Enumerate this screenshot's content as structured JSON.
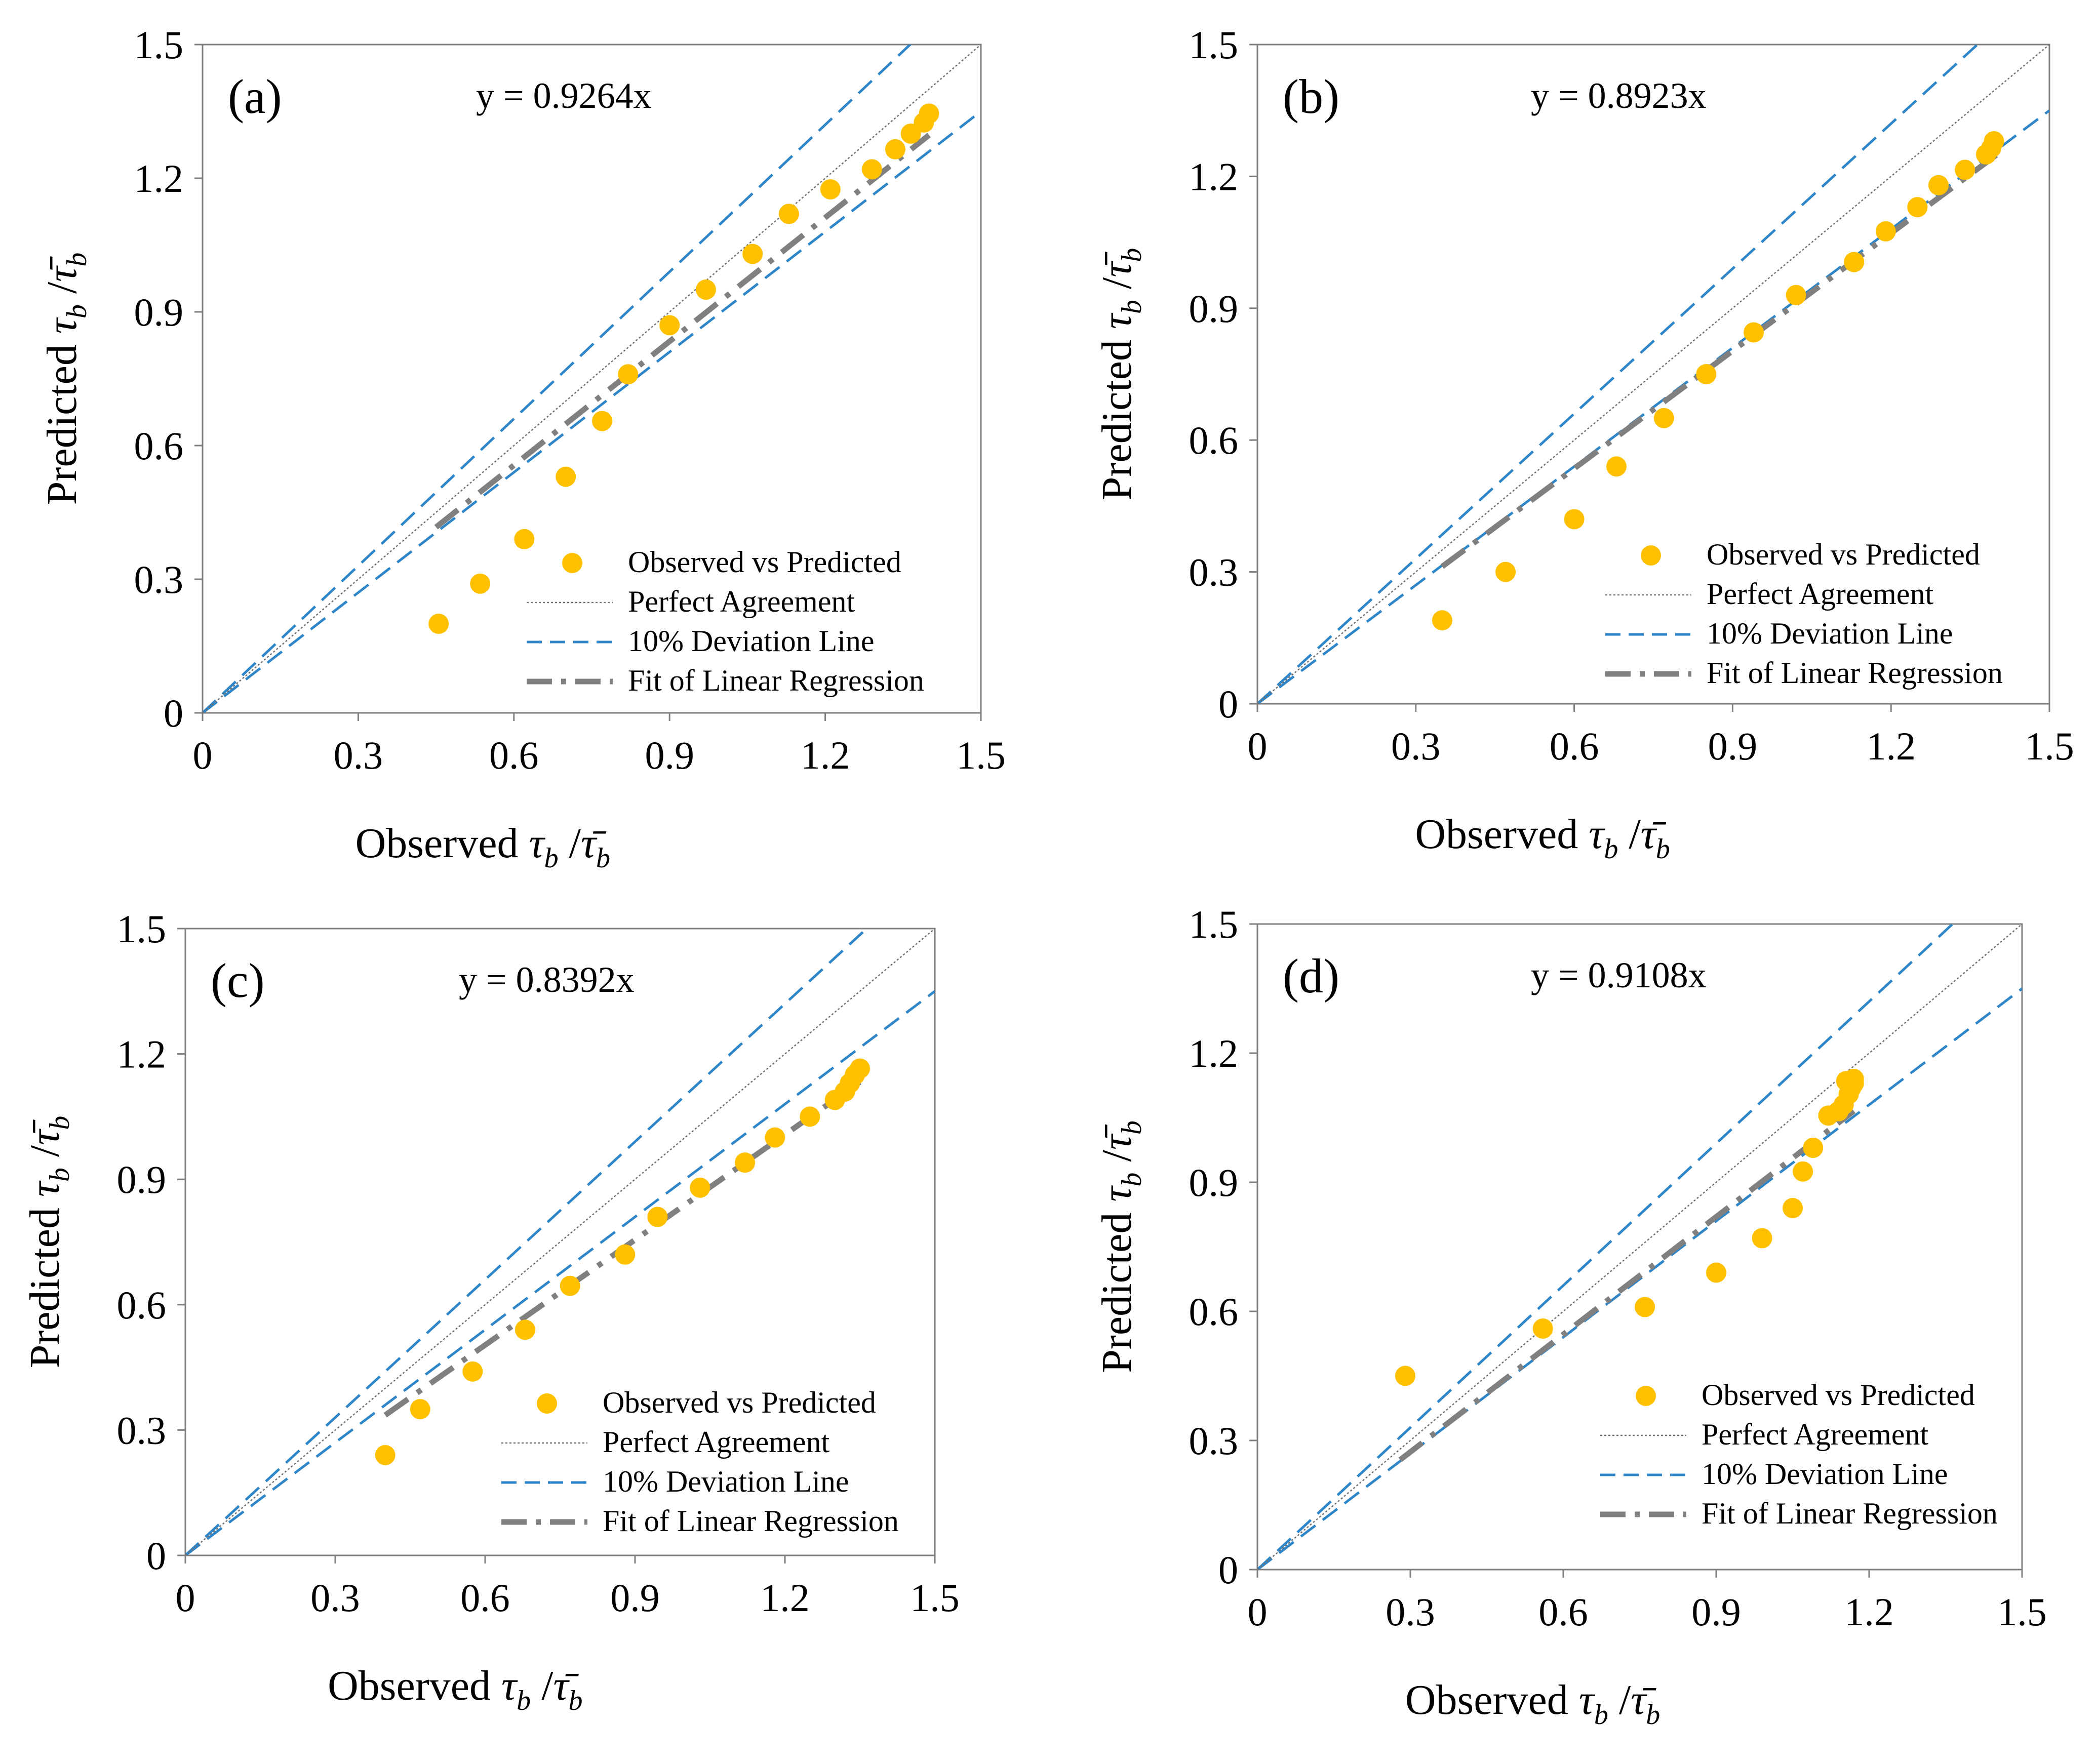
{
  "colors": {
    "points": "#FFC000",
    "perfect": "#707070",
    "deviation": "#2E86C8",
    "regression": "#808080",
    "frame": "#7F7F7F"
  },
  "legend": {
    "observed": "Observed vs Predicted",
    "perfect": "Perfect Agreement",
    "deviation": "10% Deviation Line",
    "regression": "Fit of Linear Regression"
  },
  "axes": {
    "x_word": "Observed",
    "y_word": "Predicted",
    "tau": "τ",
    "tau_bar": "τ̄",
    "subscript": "b",
    "slash": "/"
  },
  "ticks": {
    "x": [
      "0",
      "0.3",
      "0.6",
      "0.9",
      "1.2",
      "1.5"
    ],
    "y": [
      "0",
      "0.3",
      "0.6",
      "0.9",
      "1.2",
      "1.5"
    ]
  },
  "chart_data": [
    {
      "type": "scatter",
      "panel": "(a)",
      "equation": "y = 0.9264x",
      "slope": 0.9264,
      "xlim": [
        0,
        1.5
      ],
      "ylim": [
        0,
        1.5
      ],
      "fit_x_range": [
        0.45,
        1.4
      ],
      "points": [
        [
          0.455,
          0.2
        ],
        [
          0.535,
          0.29
        ],
        [
          0.62,
          0.39
        ],
        [
          0.7,
          0.53
        ],
        [
          0.77,
          0.655
        ],
        [
          0.82,
          0.76
        ],
        [
          0.9,
          0.87
        ],
        [
          0.97,
          0.95
        ],
        [
          1.06,
          1.03
        ],
        [
          1.13,
          1.12
        ],
        [
          1.21,
          1.175
        ],
        [
          1.29,
          1.22
        ],
        [
          1.335,
          1.265
        ],
        [
          1.365,
          1.3
        ],
        [
          1.39,
          1.325
        ],
        [
          1.4,
          1.345
        ]
      ]
    },
    {
      "type": "scatter",
      "panel": "(b)",
      "equation": "y = 0.8923x",
      "slope": 0.8923,
      "xlim": [
        0,
        1.5
      ],
      "ylim": [
        0,
        1.5
      ],
      "fit_x_range": [
        0.35,
        1.4
      ],
      "points": [
        [
          0.35,
          0.19
        ],
        [
          0.47,
          0.3
        ],
        [
          0.6,
          0.42
        ],
        [
          0.68,
          0.54
        ],
        [
          0.77,
          0.65
        ],
        [
          0.85,
          0.75
        ],
        [
          0.94,
          0.845
        ],
        [
          1.02,
          0.93
        ],
        [
          1.13,
          1.005
        ],
        [
          1.19,
          1.075
        ],
        [
          1.25,
          1.13
        ],
        [
          1.29,
          1.18
        ],
        [
          1.34,
          1.215
        ],
        [
          1.38,
          1.25
        ],
        [
          1.39,
          1.265
        ],
        [
          1.395,
          1.28
        ]
      ]
    },
    {
      "type": "scatter",
      "panel": "(c)",
      "equation": "y = 0.8392x",
      "slope": 0.8392,
      "xlim": [
        0,
        1.5
      ],
      "ylim": [
        0,
        1.5
      ],
      "fit_x_range": [
        0.4,
        1.35
      ],
      "points": [
        [
          0.4,
          0.24
        ],
        [
          0.47,
          0.35
        ],
        [
          0.575,
          0.44
        ],
        [
          0.68,
          0.54
        ],
        [
          0.77,
          0.645
        ],
        [
          0.88,
          0.72
        ],
        [
          0.945,
          0.81
        ],
        [
          1.03,
          0.88
        ],
        [
          1.12,
          0.94
        ],
        [
          1.18,
          1.0
        ],
        [
          1.25,
          1.05
        ],
        [
          1.3,
          1.09
        ],
        [
          1.32,
          1.11
        ],
        [
          1.33,
          1.13
        ],
        [
          1.34,
          1.15
        ],
        [
          1.35,
          1.165
        ]
      ]
    },
    {
      "type": "scatter",
      "panel": "(d)",
      "equation": "y = 0.9108x",
      "slope": 0.9108,
      "xlim": [
        0,
        1.5
      ],
      "ylim": [
        0,
        1.5
      ],
      "fit_x_range": [
        0.28,
        1.17
      ],
      "points": [
        [
          0.29,
          0.45
        ],
        [
          0.56,
          0.56
        ],
        [
          0.76,
          0.61
        ],
        [
          0.9,
          0.69
        ],
        [
          0.99,
          0.77
        ],
        [
          1.05,
          0.84
        ],
        [
          1.07,
          0.925
        ],
        [
          1.09,
          0.98
        ],
        [
          1.12,
          1.055
        ],
        [
          1.14,
          1.065
        ],
        [
          1.15,
          1.08
        ],
        [
          1.16,
          1.105
        ],
        [
          1.165,
          1.12
        ],
        [
          1.17,
          1.13
        ],
        [
          1.155,
          1.135
        ],
        [
          1.17,
          1.14
        ]
      ]
    }
  ]
}
